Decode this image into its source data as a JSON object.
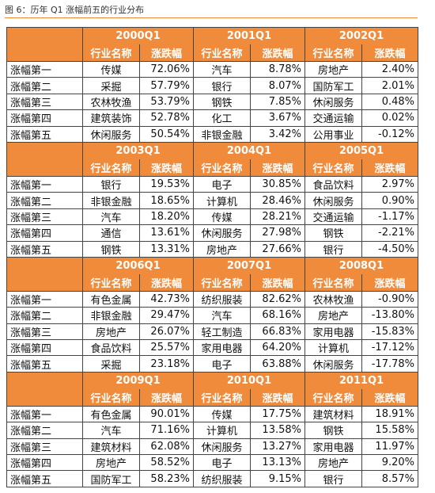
{
  "title": "图 6：历年 Q1 涨幅前五的行业分布",
  "column_headers": [
    "行业名称",
    "涨跌幅"
  ],
  "row_labels": [
    "涨幅第一",
    "涨幅第二",
    "涨幅第三",
    "涨幅第四",
    "涨幅第五"
  ],
  "blocks": [
    {
      "years": [
        "2000Q1",
        "2001Q1",
        "2002Q1"
      ],
      "rows": [
        [
          "传媒",
          "72.06%",
          "汽车",
          "8.78%",
          "房地产",
          "2.40%"
        ],
        [
          "采掘",
          "57.79%",
          "银行",
          "8.07%",
          "国防军工",
          "2.01%"
        ],
        [
          "农林牧渔",
          "53.79%",
          "钢铁",
          "7.85%",
          "休闲服务",
          "0.48%"
        ],
        [
          "建筑装饰",
          "52.78%",
          "化工",
          "3.67%",
          "交通运输",
          "0.02%"
        ],
        [
          "休闲服务",
          "50.54%",
          "非银金融",
          "3.42%",
          "公用事业",
          "-0.12%"
        ]
      ]
    },
    {
      "years": [
        "2003Q1",
        "2004Q1",
        "2005Q1"
      ],
      "rows": [
        [
          "银行",
          "19.53%",
          "电子",
          "30.85%",
          "食品饮料",
          "2.97%"
        ],
        [
          "非银金融",
          "18.65%",
          "计算机",
          "28.46%",
          "休闲服务",
          "0.90%"
        ],
        [
          "汽车",
          "18.20%",
          "传媒",
          "28.21%",
          "交通运输",
          "-1.17%"
        ],
        [
          "通信",
          "13.61%",
          "休闲服务",
          "27.98%",
          "钢铁",
          "-2.21%"
        ],
        [
          "钢铁",
          "13.31%",
          "房地产",
          "27.66%",
          "银行",
          "-4.50%"
        ]
      ]
    },
    {
      "years": [
        "2006Q1",
        "2007Q1",
        "2008Q1"
      ],
      "rows": [
        [
          "有色金属",
          "42.73%",
          "纺织服装",
          "82.62%",
          "农林牧渔",
          "-0.90%"
        ],
        [
          "非银金融",
          "29.47%",
          "汽车",
          "68.16%",
          "房地产",
          "-13.80%"
        ],
        [
          "房地产",
          "26.07%",
          "轻工制造",
          "66.83%",
          "家用电器",
          "-15.83%"
        ],
        [
          "食品饮料",
          "25.57%",
          "家用电器",
          "64.20%",
          "计算机",
          "-17.12%"
        ],
        [
          "采掘",
          "23.18%",
          "电子",
          "63.88%",
          "休闲服务",
          "-17.78%"
        ]
      ]
    },
    {
      "years": [
        "2009Q1",
        "2010Q1",
        "2011Q1"
      ],
      "rows": [
        [
          "有色金属",
          "90.01%",
          "传媒",
          "17.75%",
          "建筑材料",
          "18.91%"
        ],
        [
          "汽车",
          "71.16%",
          "计算机",
          "13.58%",
          "钢铁",
          "15.58%"
        ],
        [
          "建筑材料",
          "62.08%",
          "休闲服务",
          "13.27%",
          "家用电器",
          "11.97%"
        ],
        [
          "房地产",
          "58.52%",
          "电子",
          "13.13%",
          "房地产",
          "9.20%"
        ],
        [
          "国防军工",
          "58.23%",
          "纺织服装",
          "9.15%",
          "银行",
          "8.57%"
        ]
      ]
    }
  ]
}
